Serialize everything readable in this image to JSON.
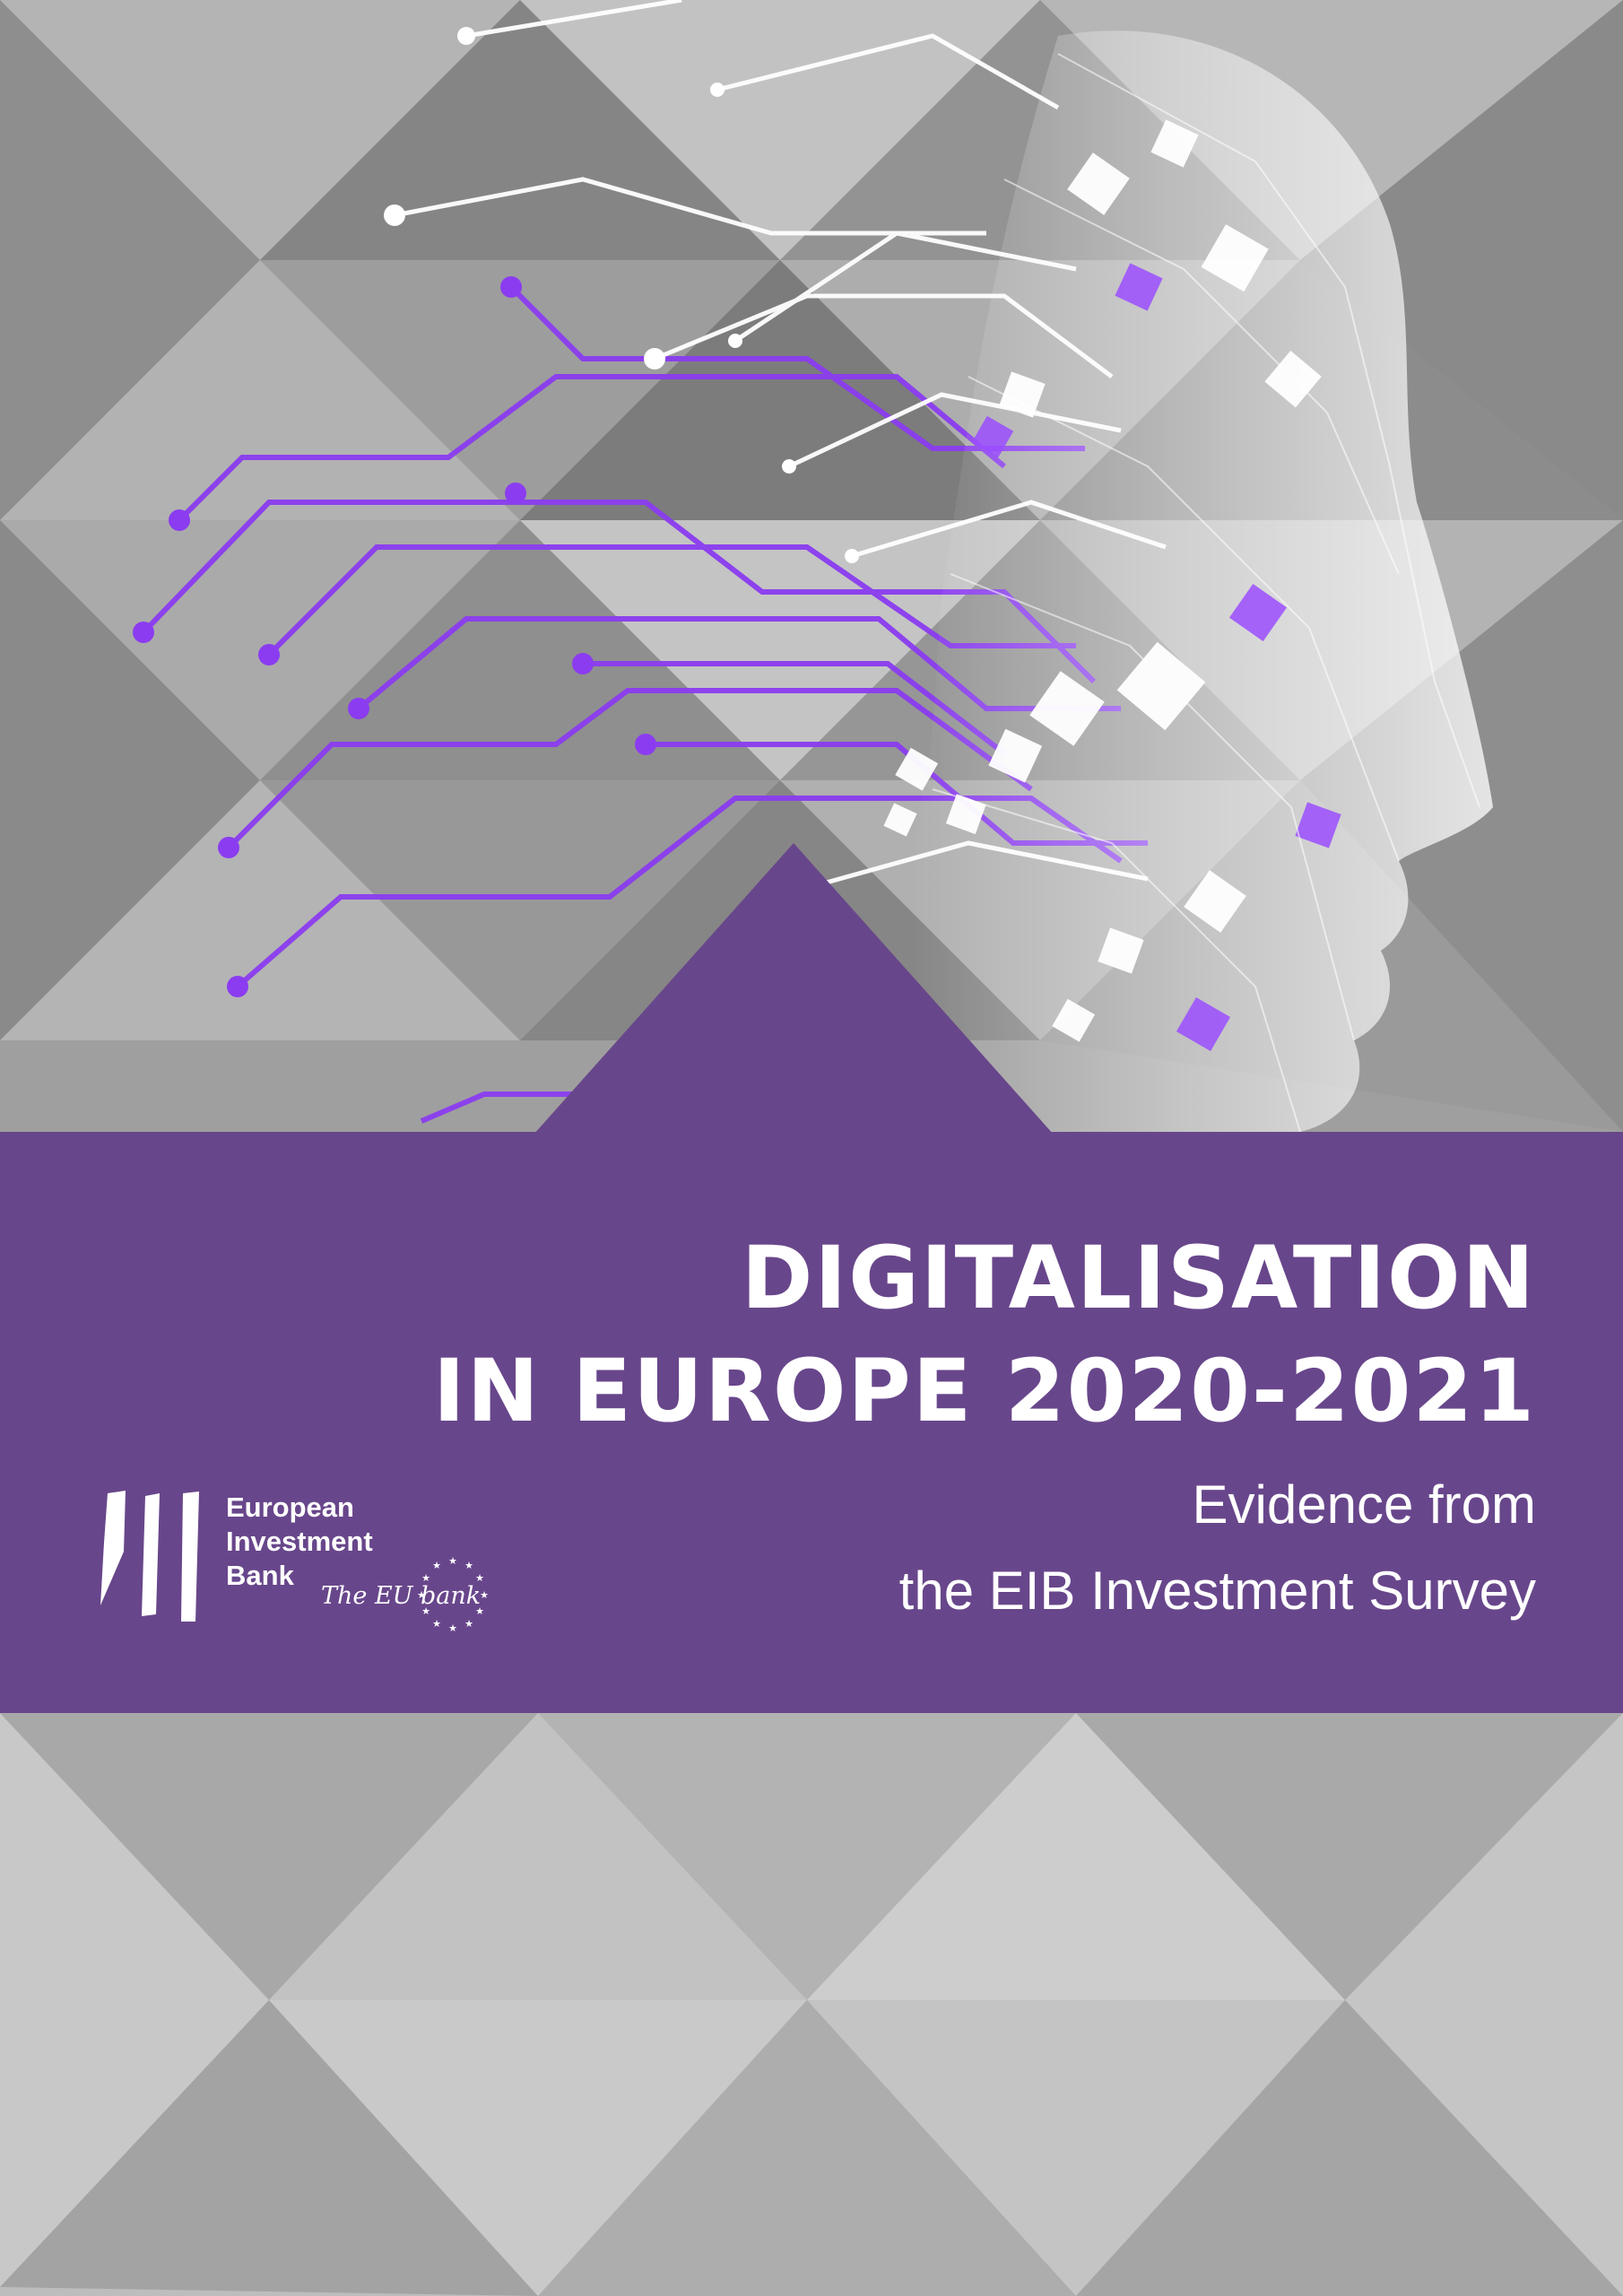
{
  "cover": {
    "title_line1": "DIGITALISATION",
    "title_line2": "IN EUROPE 2020-2021",
    "subtitle_line1": "Evidence from",
    "subtitle_line2": "the EIB Investment Survey"
  },
  "publisher": {
    "name_line1": "European",
    "name_line2": "Investment",
    "name_line3": "Bank",
    "tagline": "The EU bank"
  },
  "colors": {
    "band": "#68468b",
    "accent": "#8b3cf0",
    "text": "#ffffff",
    "pattern_light": "#c9c9c9",
    "pattern_dark": "#8a8a8a"
  },
  "icons": [
    "eib-logo-icon",
    "eu-stars-icon",
    "digital-head-icon"
  ]
}
